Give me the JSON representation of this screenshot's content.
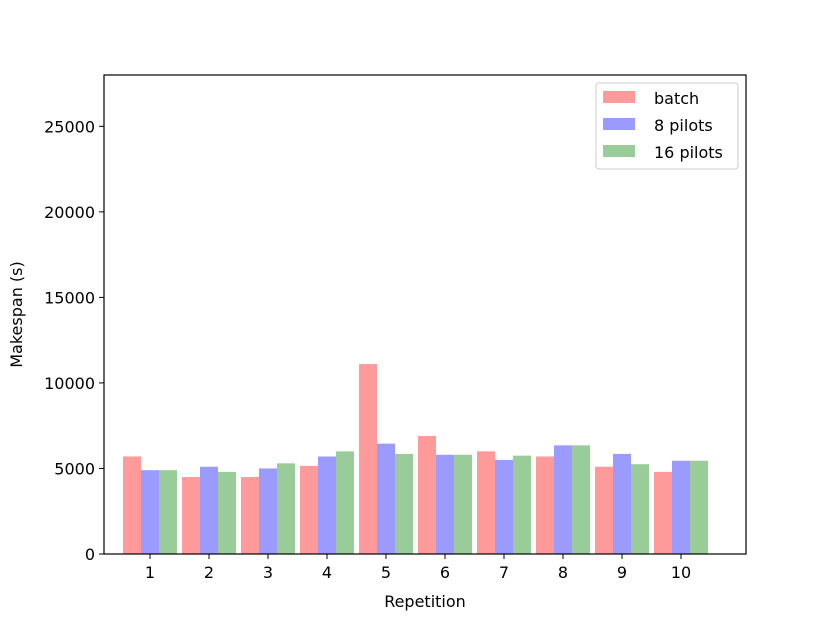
{
  "chart_data": {
    "type": "bar",
    "title": "",
    "xlabel": "Repetition",
    "ylabel": "Makespan (s)",
    "categories": [
      "1",
      "2",
      "3",
      "4",
      "5",
      "6",
      "7",
      "8",
      "9",
      "10"
    ],
    "series": [
      {
        "name": "batch",
        "color": "#ff9a9a",
        "values": [
          5700,
          4500,
          4500,
          5150,
          11100,
          6900,
          6000,
          5700,
          5100,
          4800
        ]
      },
      {
        "name": "8 pilots",
        "color": "#9a9aff",
        "values": [
          4900,
          5100,
          5000,
          5700,
          6450,
          5800,
          5500,
          6350,
          5850,
          5450
        ]
      },
      {
        "name": "16 pilots",
        "color": "#9acc9a",
        "values": [
          4900,
          4800,
          5300,
          6000,
          5850,
          5800,
          5750,
          6350,
          5250,
          5450
        ]
      }
    ],
    "ylim": [
      0,
      28000
    ],
    "yticks": [
      0,
      5000,
      10000,
      15000,
      20000,
      25000
    ],
    "grid": false,
    "legend": "top-right"
  }
}
